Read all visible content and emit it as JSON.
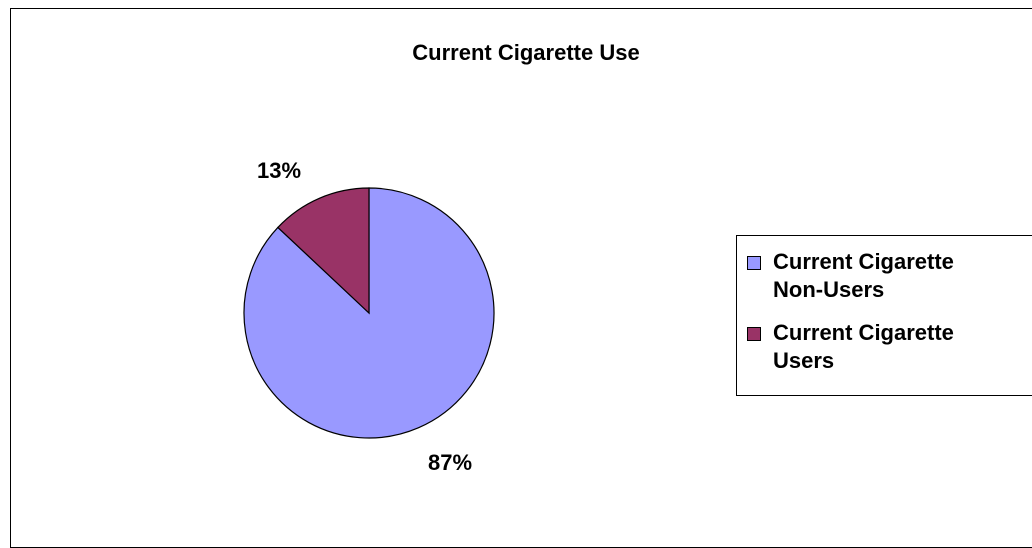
{
  "colors": {
    "non_users": "#9999FF",
    "users": "#993366",
    "border": "#000000"
  },
  "chart_data": {
    "type": "pie",
    "title": "Current Cigarette Use",
    "categories": [
      "Current Cigarette Non-Users",
      "Current Cigarette Users"
    ],
    "values": [
      87,
      13
    ],
    "labels": [
      "87%",
      "13%"
    ],
    "legend_position": "right"
  },
  "legend": {
    "items": [
      {
        "line1": "Current Cigarette",
        "line2": "Non-Users"
      },
      {
        "line1": "Current Cigarette",
        "line2": "Users"
      }
    ]
  }
}
